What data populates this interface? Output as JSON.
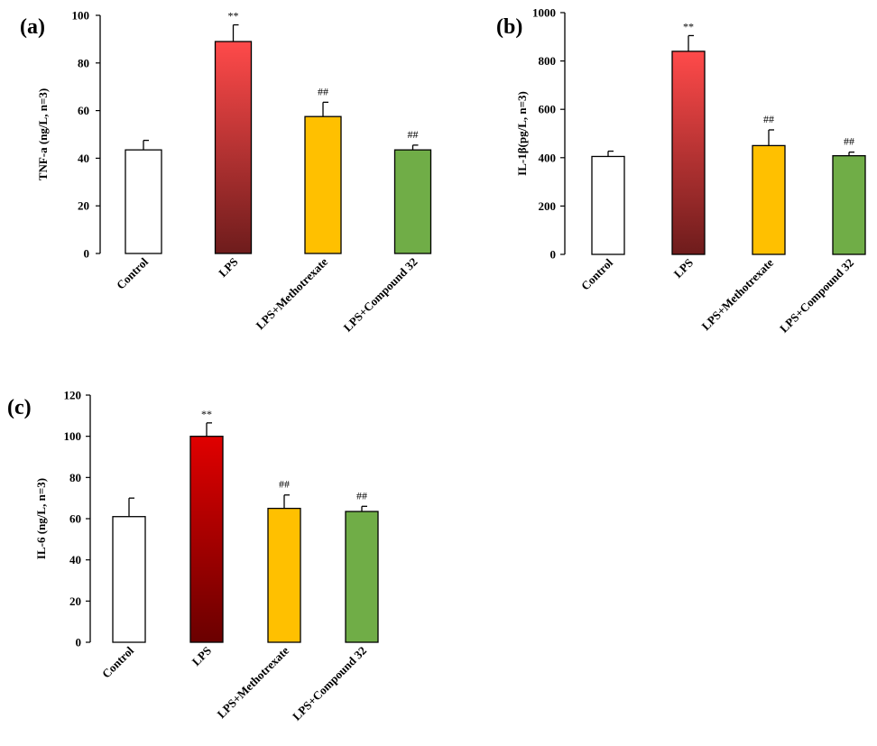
{
  "chart_data": [
    {
      "type": "bar",
      "panel": "(a)",
      "ylabel": "TNF-a (ng/L, n=3)",
      "ylim": [
        0,
        100
      ],
      "yticks": [
        0,
        20,
        40,
        60,
        80,
        100
      ],
      "categories": [
        "Control",
        "LPS",
        "LPS+Methotrexate",
        "LPS+Compound 32"
      ],
      "values": [
        43.5,
        89,
        57.5,
        43.5
      ],
      "errors": [
        4,
        7,
        6,
        2
      ],
      "annotations": [
        "",
        "**",
        "##",
        "##"
      ],
      "colors": [
        "#ffffff",
        "gradient:#ff4a4a:#6e1c1c",
        "#ffc000",
        "#70ad47"
      ]
    },
    {
      "type": "bar",
      "panel": "(b)",
      "ylabel": "IL-1β(pg/L, n=3)",
      "ylim": [
        0,
        1000
      ],
      "yticks": [
        0,
        200,
        400,
        600,
        800,
        1000
      ],
      "categories": [
        "Control",
        "LPS",
        "LPS+Methotrexate",
        "LPS+Compound 32"
      ],
      "values": [
        405,
        840,
        450,
        408
      ],
      "errors": [
        22,
        65,
        65,
        15
      ],
      "annotations": [
        "",
        "**",
        "##",
        "##"
      ],
      "colors": [
        "#ffffff",
        "gradient:#ff4a4a:#6e1c1c",
        "#ffc000",
        "#70ad47"
      ]
    },
    {
      "type": "bar",
      "panel": "(c)",
      "ylabel": "IL-6 (ng/L, n=3)",
      "ylim": [
        0,
        120
      ],
      "yticks": [
        0,
        20,
        40,
        60,
        80,
        100,
        120
      ],
      "categories": [
        "Control",
        "LPS",
        "LPS+Methotrexate",
        "LPS+Compound 32"
      ],
      "values": [
        61,
        100,
        65,
        63.5
      ],
      "errors": [
        9,
        6.5,
        6.5,
        2.5
      ],
      "annotations": [
        "",
        "**",
        "##",
        "##"
      ],
      "colors": [
        "#ffffff",
        "gradient:#e00000:#6a0000",
        "#ffc000",
        "#70ad47"
      ]
    }
  ]
}
